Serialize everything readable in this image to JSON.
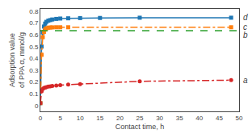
{
  "chart_data": {
    "type": "line",
    "xlabel": "Contact time, h",
    "ylabel": "Adsorption value\nof PPA α, mmol/g",
    "xlim": [
      0,
      50
    ],
    "ylim": [
      -0.05,
      0.82
    ],
    "xticks": [
      0,
      5,
      10,
      15,
      20,
      25,
      30,
      35,
      40,
      45,
      50
    ],
    "yticks": [
      0,
      0.1,
      0.2,
      0.3,
      0.4,
      0.5,
      0.6,
      0.7,
      0.8
    ],
    "grid": false,
    "series": [
      {
        "name": "d",
        "marker": "square",
        "line_style": "solid",
        "x": [
          0.0,
          0.3,
          0.6,
          0.9,
          1.2,
          1.5,
          2.0,
          2.5,
          3.0,
          4.0,
          5.0,
          7.0,
          10.0,
          15.0,
          25.0,
          48.0
        ],
        "values": [
          0.02,
          0.5,
          0.62,
          0.67,
          0.695,
          0.71,
          0.72,
          0.725,
          0.73,
          0.735,
          0.738,
          0.74,
          0.742,
          0.743,
          0.745,
          0.745
        ]
      },
      {
        "name": "c",
        "marker": "square",
        "line_style": "dashdot",
        "x": [
          0.0,
          0.3,
          0.6,
          0.9,
          1.2,
          1.5,
          2.0,
          2.5,
          3.0,
          4.0,
          5.0,
          7.0,
          48.0
        ],
        "values": [
          0.02,
          0.43,
          0.58,
          0.625,
          0.645,
          0.655,
          0.66,
          0.662,
          0.663,
          0.664,
          0.664,
          0.664,
          0.664
        ]
      },
      {
        "name": "b",
        "type": "hline",
        "line_style": "dash",
        "values": [
          0.635
        ]
      },
      {
        "name": "a",
        "marker": "circle",
        "line_style": "dashdot",
        "x": [
          0.0,
          0.3,
          0.6,
          0.9,
          1.2,
          1.5,
          2.0,
          2.5,
          3.0,
          4.0,
          5.0,
          7.0,
          10.0,
          25.0,
          48.0
        ],
        "values": [
          0.02,
          0.12,
          0.14,
          0.148,
          0.152,
          0.155,
          0.16,
          0.163,
          0.166,
          0.17,
          0.173,
          0.177,
          0.182,
          0.205,
          0.215
        ]
      }
    ]
  }
}
